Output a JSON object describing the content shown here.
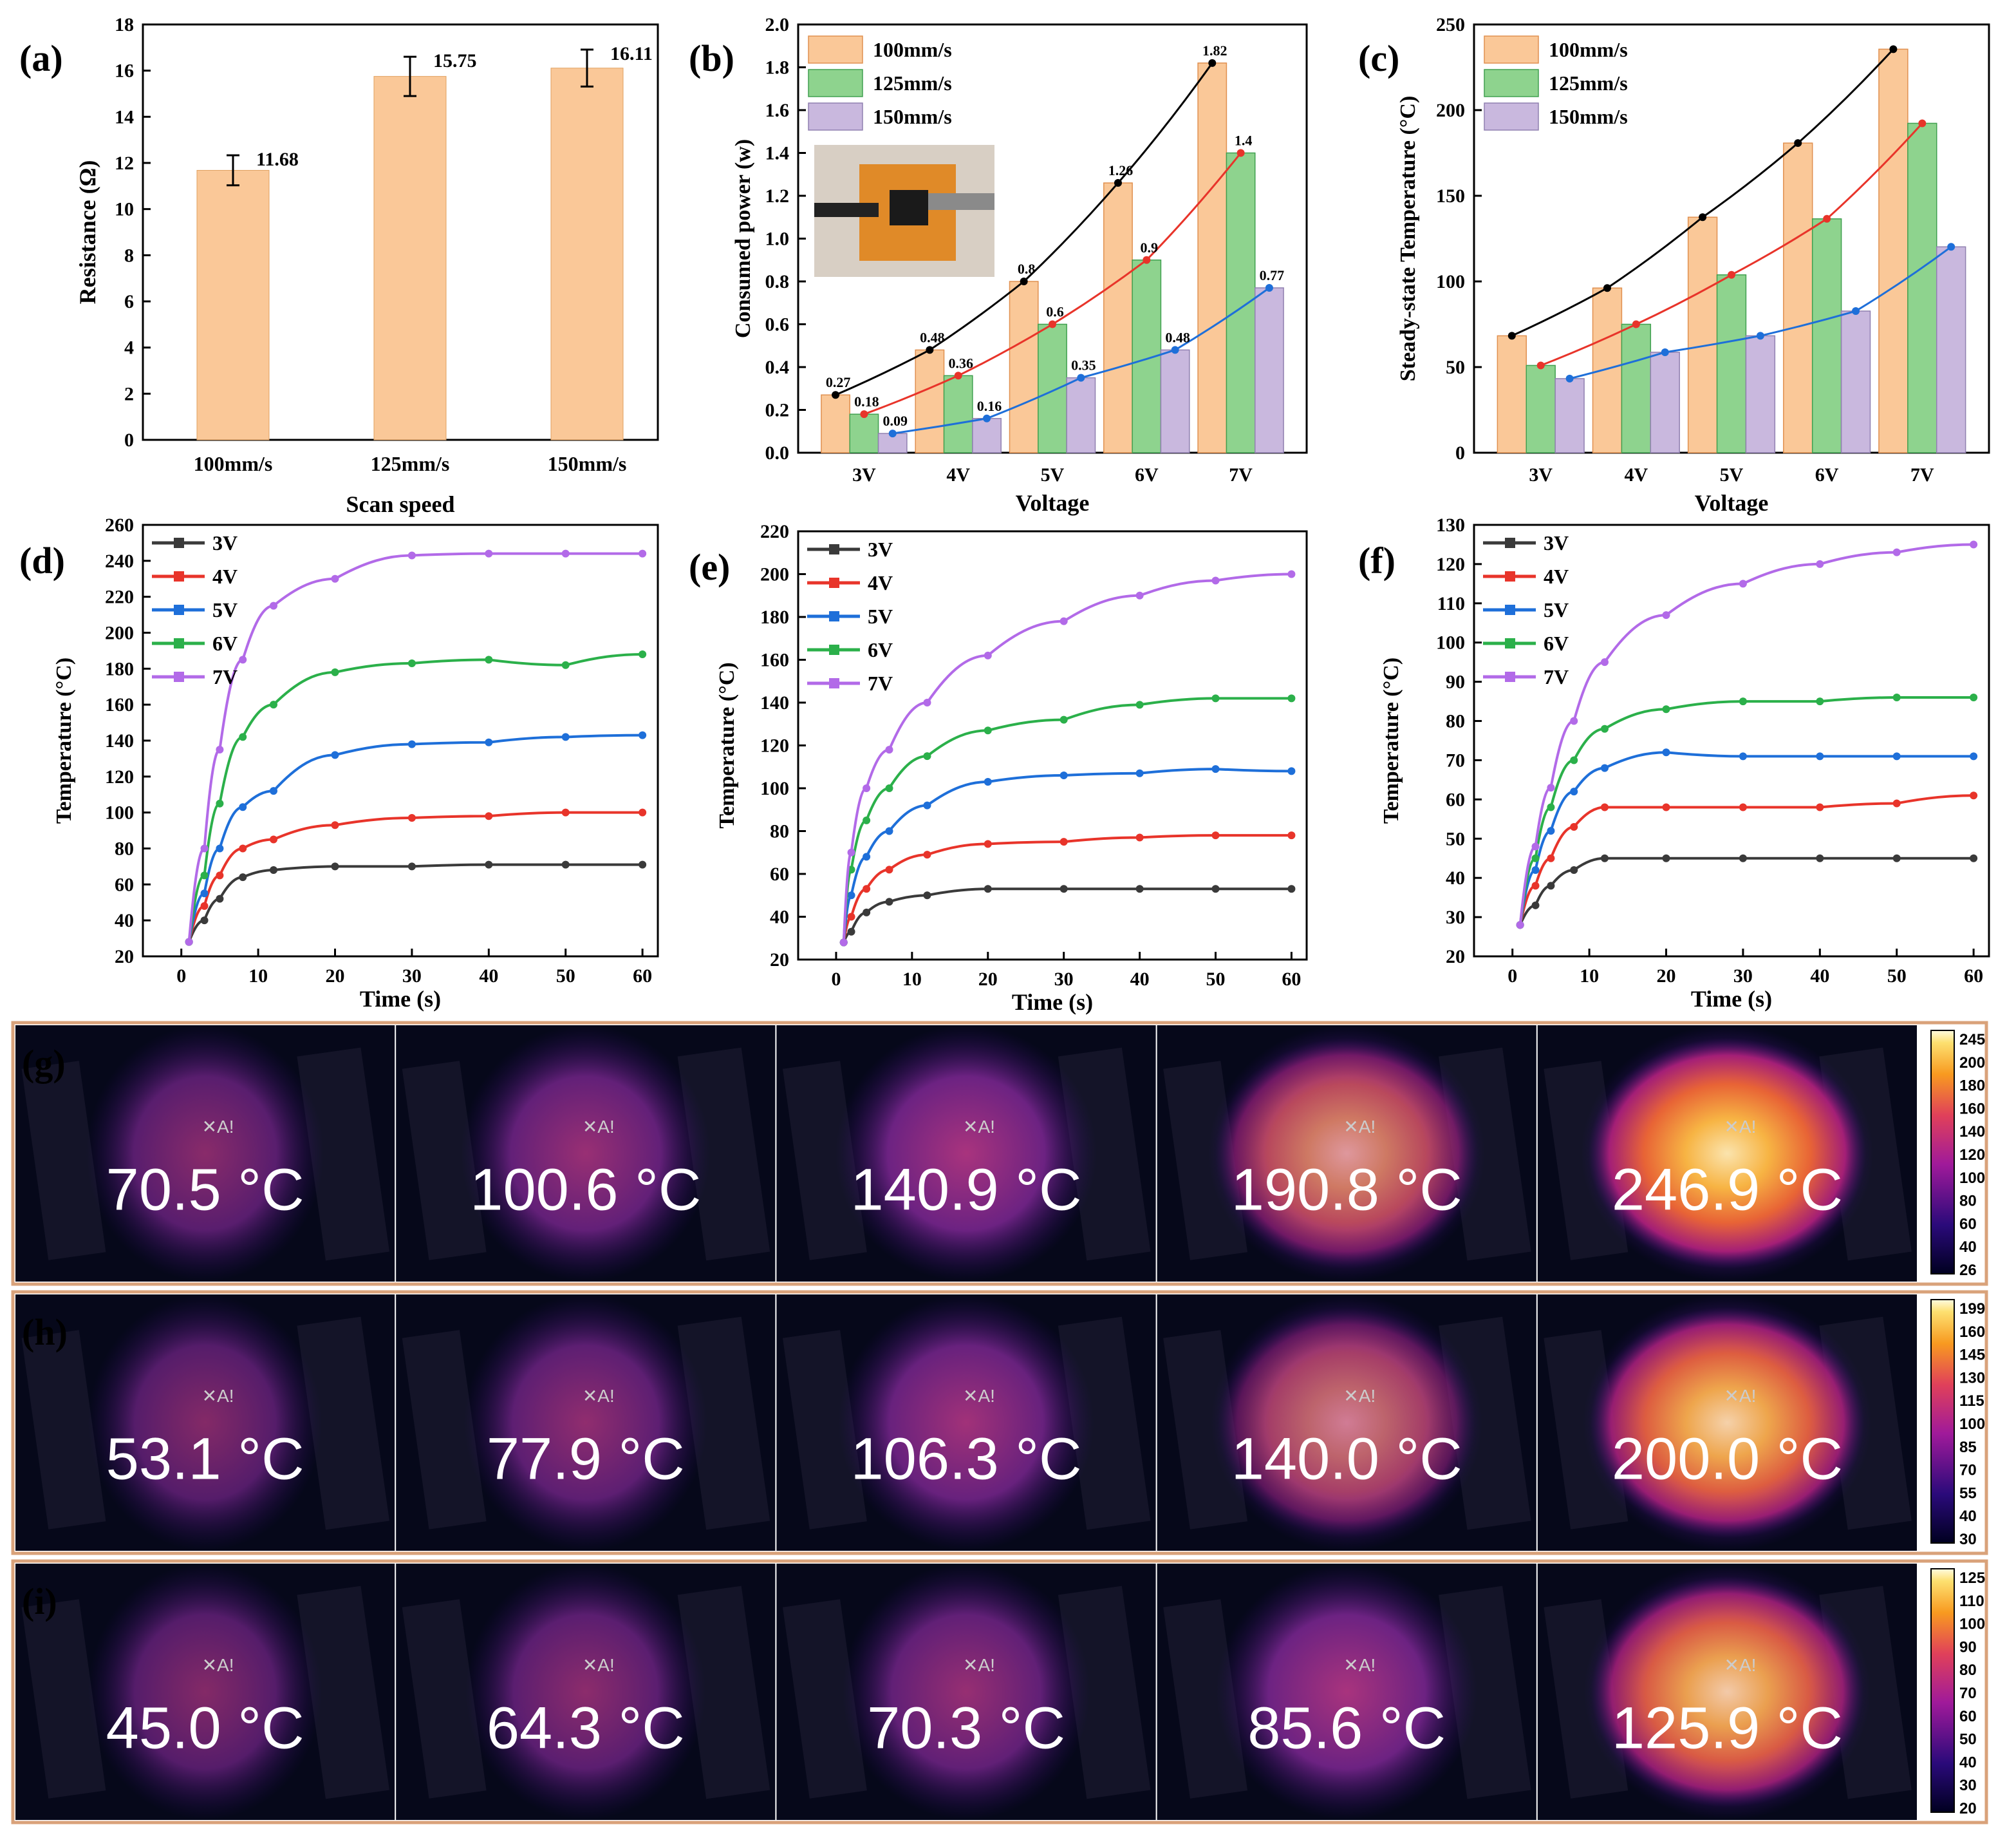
{
  "colors": {
    "bar100": "#FAC898",
    "bar125": "#8ED38E",
    "bar150": "#C9B8DE",
    "s3V": "#3a3a3a",
    "s4V": "#E8342A",
    "s5V": "#1E6FD9",
    "s6V": "#2BB04A",
    "s7V": "#B26AE8",
    "frame": "#D9A27A"
  },
  "panels": {
    "a": "(a)",
    "b": "(b)",
    "c": "(c)",
    "d": "(d)",
    "e": "(e)",
    "f": "(f)",
    "g": "(g)",
    "h": "(h)",
    "i": "(i)"
  },
  "chart_data": [
    {
      "id": "a",
      "type": "bar",
      "xlabel": "Scan speed",
      "ylabel": "Resistance (Ω)",
      "categories": [
        "100mm/s",
        "125mm/s",
        "150mm/s"
      ],
      "values": [
        11.68,
        15.75,
        16.11
      ],
      "errors": [
        0.65,
        0.85,
        0.8
      ],
      "data_labels": [
        "11.68",
        "15.75",
        "16.11"
      ],
      "ylim": [
        0,
        18
      ],
      "yticks": [
        "0",
        "2",
        "4",
        "6",
        "8",
        "10",
        "12",
        "14",
        "16",
        "18"
      ]
    },
    {
      "id": "b",
      "type": "bar",
      "xlabel": "Voltage",
      "ylabel": "Consumed power (w)",
      "categories": [
        "3V",
        "4V",
        "5V",
        "6V",
        "7V"
      ],
      "series": [
        {
          "name": "100mm/s",
          "values": [
            0.27,
            0.48,
            0.8,
            1.26,
            1.82
          ],
          "labels": [
            "0.27",
            "0.48",
            "0.8",
            "1.26",
            "1.82"
          ]
        },
        {
          "name": "125mm/s",
          "values": [
            0.18,
            0.36,
            0.6,
            0.9,
            1.4
          ],
          "labels": [
            "0.18",
            "0.36",
            "0.6",
            "0.9",
            "1.4"
          ]
        },
        {
          "name": "150mm/s",
          "values": [
            0.09,
            0.16,
            0.35,
            0.48,
            0.77
          ],
          "labels": [
            "0.09",
            "0.16",
            "0.35",
            "0.48",
            "0.77"
          ]
        }
      ],
      "ylim": [
        0,
        2.0
      ],
      "yticks": [
        "0.0",
        "0.2",
        "0.4",
        "0.6",
        "0.8",
        "1.0",
        "1.2",
        "1.4",
        "1.6",
        "1.8",
        "2.0"
      ],
      "legend": "top-left"
    },
    {
      "id": "c",
      "type": "bar",
      "xlabel": "Voltage",
      "ylabel": "Steady-state Temperature (°C)",
      "categories": [
        "3V",
        "4V",
        "5V",
        "6V",
        "7V"
      ],
      "series": [
        {
          "name": "100mm/s",
          "values": [
            71,
            100,
            143,
            188,
            245
          ]
        },
        {
          "name": "125mm/s",
          "values": [
            53,
            78,
            108,
            142,
            200
          ]
        },
        {
          "name": "150mm/s",
          "values": [
            45,
            61,
            71,
            86,
            125
          ]
        }
      ],
      "ylim": [
        0,
        260
      ],
      "yticks": [
        "0",
        "50",
        "100",
        "150",
        "200",
        "250"
      ],
      "legend": "top-left"
    },
    {
      "id": "d",
      "type": "line",
      "xlabel": "Time (s)",
      "ylabel": "Temperature (°C)",
      "xlim": [
        -5,
        62
      ],
      "ylim": [
        20,
        260
      ],
      "xticks": [
        "0",
        "10",
        "20",
        "30",
        "40",
        "50",
        "60"
      ],
      "yticks": [
        "20",
        "40",
        "60",
        "80",
        "100",
        "120",
        "140",
        "160",
        "180",
        "200",
        "220",
        "240",
        "260"
      ],
      "legend": "top-left",
      "series": [
        {
          "name": "3V",
          "x": [
            1,
            3,
            5,
            8,
            12,
            20,
            30,
            40,
            50,
            60
          ],
          "y": [
            28,
            40,
            52,
            64,
            68,
            70,
            70,
            71,
            71,
            71
          ]
        },
        {
          "name": "4V",
          "x": [
            1,
            3,
            5,
            8,
            12,
            20,
            30,
            40,
            50,
            60
          ],
          "y": [
            28,
            48,
            65,
            80,
            85,
            93,
            97,
            98,
            100,
            100
          ]
        },
        {
          "name": "5V",
          "x": [
            1,
            3,
            5,
            8,
            12,
            20,
            30,
            40,
            50,
            60
          ],
          "y": [
            28,
            55,
            80,
            103,
            112,
            132,
            138,
            139,
            142,
            143
          ]
        },
        {
          "name": "6V",
          "x": [
            1,
            3,
            5,
            8,
            12,
            20,
            30,
            40,
            50,
            60
          ],
          "y": [
            28,
            65,
            105,
            142,
            160,
            178,
            183,
            185,
            182,
            188
          ]
        },
        {
          "name": "7V",
          "x": [
            1,
            3,
            5,
            8,
            12,
            20,
            30,
            40,
            50,
            60
          ],
          "y": [
            28,
            80,
            135,
            185,
            215,
            230,
            243,
            244,
            244,
            244
          ]
        }
      ]
    },
    {
      "id": "e",
      "type": "line",
      "xlabel": "Time (s)",
      "ylabel": "Temperature (°C)",
      "xlim": [
        -5,
        62
      ],
      "ylim": [
        20,
        220
      ],
      "xticks": [
        "0",
        "10",
        "20",
        "30",
        "40",
        "50",
        "60"
      ],
      "yticks": [
        "20",
        "40",
        "60",
        "80",
        "100",
        "120",
        "140",
        "160",
        "180",
        "200",
        "220"
      ],
      "legend": "top-left",
      "series": [
        {
          "name": "3V",
          "x": [
            1,
            2,
            4,
            7,
            12,
            20,
            30,
            40,
            50,
            60
          ],
          "y": [
            28,
            33,
            42,
            47,
            50,
            53,
            53,
            53,
            53,
            53
          ]
        },
        {
          "name": "4V",
          "x": [
            1,
            2,
            4,
            7,
            12,
            20,
            30,
            40,
            50,
            60
          ],
          "y": [
            28,
            40,
            53,
            62,
            69,
            74,
            75,
            77,
            78,
            78
          ]
        },
        {
          "name": "5V",
          "x": [
            1,
            2,
            4,
            7,
            12,
            20,
            30,
            40,
            50,
            60
          ],
          "y": [
            28,
            50,
            68,
            80,
            92,
            103,
            106,
            107,
            109,
            108
          ]
        },
        {
          "name": "6V",
          "x": [
            1,
            2,
            4,
            7,
            12,
            20,
            30,
            40,
            50,
            60
          ],
          "y": [
            28,
            62,
            85,
            100,
            115,
            127,
            132,
            139,
            142,
            142
          ]
        },
        {
          "name": "7V",
          "x": [
            1,
            2,
            4,
            7,
            12,
            20,
            30,
            40,
            50,
            60
          ],
          "y": [
            28,
            70,
            100,
            118,
            140,
            162,
            178,
            190,
            197,
            200
          ]
        }
      ]
    },
    {
      "id": "f",
      "type": "line",
      "xlabel": "Time (s)",
      "ylabel": "Temperature (°C)",
      "xlim": [
        -5,
        62
      ],
      "ylim": [
        20,
        130
      ],
      "xticks": [
        "0",
        "10",
        "20",
        "30",
        "40",
        "50",
        "60"
      ],
      "yticks": [
        "20",
        "30",
        "40",
        "50",
        "60",
        "70",
        "80",
        "90",
        "100",
        "110",
        "120",
        "130"
      ],
      "legend": "top-left",
      "series": [
        {
          "name": "3V",
          "x": [
            1,
            3,
            5,
            8,
            12,
            20,
            30,
            40,
            50,
            60
          ],
          "y": [
            28,
            33,
            38,
            42,
            45,
            45,
            45,
            45,
            45,
            45
          ]
        },
        {
          "name": "4V",
          "x": [
            1,
            3,
            5,
            8,
            12,
            20,
            30,
            40,
            50,
            60
          ],
          "y": [
            28,
            38,
            45,
            53,
            58,
            58,
            58,
            58,
            59,
            61
          ]
        },
        {
          "name": "5V",
          "x": [
            1,
            3,
            5,
            8,
            12,
            20,
            30,
            40,
            50,
            60
          ],
          "y": [
            28,
            42,
            52,
            62,
            68,
            72,
            71,
            71,
            71,
            71
          ]
        },
        {
          "name": "6V",
          "x": [
            1,
            3,
            5,
            8,
            12,
            20,
            30,
            40,
            50,
            60
          ],
          "y": [
            28,
            45,
            58,
            70,
            78,
            83,
            85,
            85,
            86,
            86
          ]
        },
        {
          "name": "7V",
          "x": [
            1,
            3,
            5,
            8,
            12,
            20,
            30,
            40,
            50,
            60
          ],
          "y": [
            28,
            48,
            63,
            80,
            95,
            107,
            115,
            120,
            123,
            125
          ]
        }
      ]
    }
  ],
  "thermal": [
    {
      "label": "(g)",
      "temps": [
        "70.5 °C",
        "100.6 °C",
        "140.9 °C",
        "190.8 °C",
        "246.9 °C"
      ],
      "intensity": [
        0.25,
        0.4,
        0.55,
        0.75,
        0.95
      ],
      "scale": [
        "245",
        "200",
        "180",
        "160",
        "140",
        "120",
        "100",
        "80",
        "60",
        "40",
        "26"
      ]
    },
    {
      "label": "(h)",
      "temps": [
        "53.1 °C",
        "77.9 °C",
        "106.3 °C",
        "140.0 °C",
        "200.0 °C"
      ],
      "intensity": [
        0.2,
        0.32,
        0.48,
        0.68,
        0.9
      ],
      "scale": [
        "199",
        "160",
        "145",
        "130",
        "115",
        "100",
        "85",
        "70",
        "55",
        "40",
        "30"
      ]
    },
    {
      "label": "(i)",
      "temps": [
        "45.0 °C",
        "64.3 °C",
        "70.3 °C",
        "85.6 °C",
        "125.9 °C"
      ],
      "intensity": [
        0.2,
        0.28,
        0.38,
        0.55,
        0.88
      ],
      "scale": [
        "125",
        "110",
        "100",
        "90",
        "80",
        "70",
        "60",
        "50",
        "40",
        "30",
        "20"
      ]
    }
  ],
  "marker": "✕A!"
}
